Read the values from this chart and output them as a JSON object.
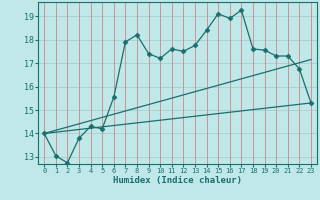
{
  "background_color": "#c0e8e8",
  "vgrid_color": "#d08888",
  "hgrid_color": "#a8d0d0",
  "line_color": "#1a6e6e",
  "xlabel": "Humidex (Indice chaleur)",
  "xlim": [
    -0.5,
    23.5
  ],
  "ylim": [
    12.7,
    19.6
  ],
  "yticks": [
    13,
    14,
    15,
    16,
    17,
    18,
    19
  ],
  "xticks": [
    0,
    1,
    2,
    3,
    4,
    5,
    6,
    7,
    8,
    9,
    10,
    11,
    12,
    13,
    14,
    15,
    16,
    17,
    18,
    19,
    20,
    21,
    22,
    23
  ],
  "line1_x": [
    0,
    1,
    2,
    3,
    4,
    5,
    6,
    7,
    8,
    9,
    10,
    11,
    12,
    13,
    14,
    15,
    16,
    17,
    18,
    19,
    20,
    21,
    22,
    23
  ],
  "line1_y": [
    14.0,
    13.05,
    12.75,
    13.8,
    14.3,
    14.2,
    15.55,
    17.9,
    18.2,
    17.4,
    17.2,
    17.6,
    17.5,
    17.75,
    18.4,
    19.1,
    18.9,
    19.25,
    17.6,
    17.55,
    17.3,
    17.3,
    16.75,
    15.3
  ],
  "line2_x": [
    0,
    23
  ],
  "line2_y": [
    14.0,
    15.3
  ],
  "line3_x": [
    0,
    23
  ],
  "line3_y": [
    14.0,
    17.15
  ]
}
